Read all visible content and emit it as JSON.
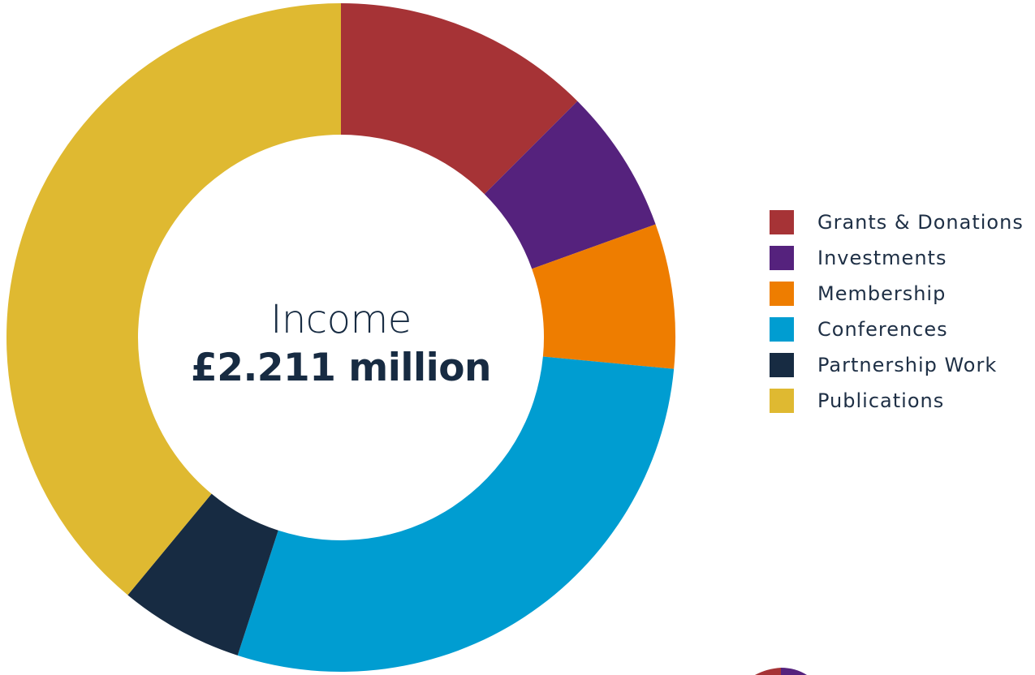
{
  "chart_data": {
    "type": "pie",
    "donut": true,
    "title": "Income",
    "subtitle": "£2.211 million",
    "legend_position": "right",
    "categories": [
      "Grants & Donations",
      "Investments",
      "Membership",
      "Conferences",
      "Partnership Work",
      "Publications"
    ],
    "values": [
      12.5,
      7.0,
      7.0,
      28.5,
      6.0,
      39.0
    ],
    "colors": [
      "#a63336",
      "#55227d",
      "#ee7d00",
      "#009dd1",
      "#172b42",
      "#dfb931"
    ]
  }
}
